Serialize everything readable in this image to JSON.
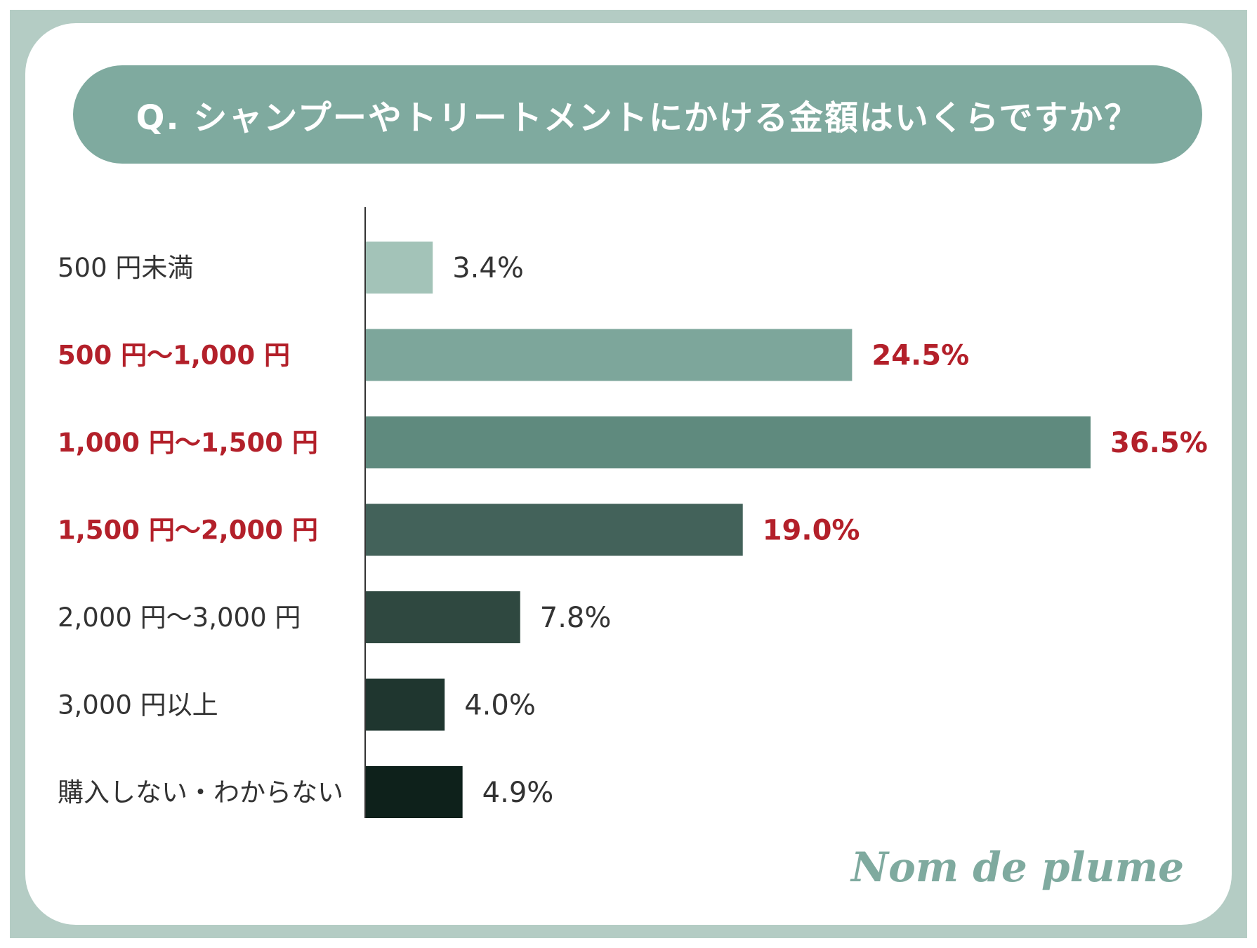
{
  "title": "Q. シャンプーやトリートメントにかける金額はいくらですか？",
  "brand": "Nom de plume",
  "colors": {
    "frame": "#b4ccc4",
    "title_bg": "#7faa9f",
    "highlight_text": "#b3202a",
    "normal_text": "#333333"
  },
  "chart_data": {
    "type": "bar",
    "orientation": "horizontal",
    "title": "Q. シャンプーやトリートメントにかける金額はいくらですか？",
    "categories": [
      "500 円未満",
      "500 円〜1,000 円",
      "1,000 円〜1,500 円",
      "1,500 円〜2,000 円",
      "2,000 円〜3,000 円",
      "3,000 円以上",
      "購入しない・わからない"
    ],
    "values": [
      3.4,
      24.5,
      36.5,
      19.0,
      7.8,
      4.0,
      4.9
    ],
    "value_labels": [
      "3.4%",
      "24.5%",
      "36.5%",
      "19.0%",
      "7.8%",
      "4.0%",
      "4.9%"
    ],
    "unit": "%",
    "highlighted": [
      false,
      true,
      true,
      true,
      false,
      false,
      false
    ],
    "bar_colors": [
      "#a3c3b8",
      "#7da69b",
      "#5f8a7e",
      "#43625a",
      "#2f4840",
      "#1f362f",
      "#0e211b"
    ],
    "xlim": [
      0,
      36.5
    ],
    "grid": false,
    "legend": "none"
  }
}
